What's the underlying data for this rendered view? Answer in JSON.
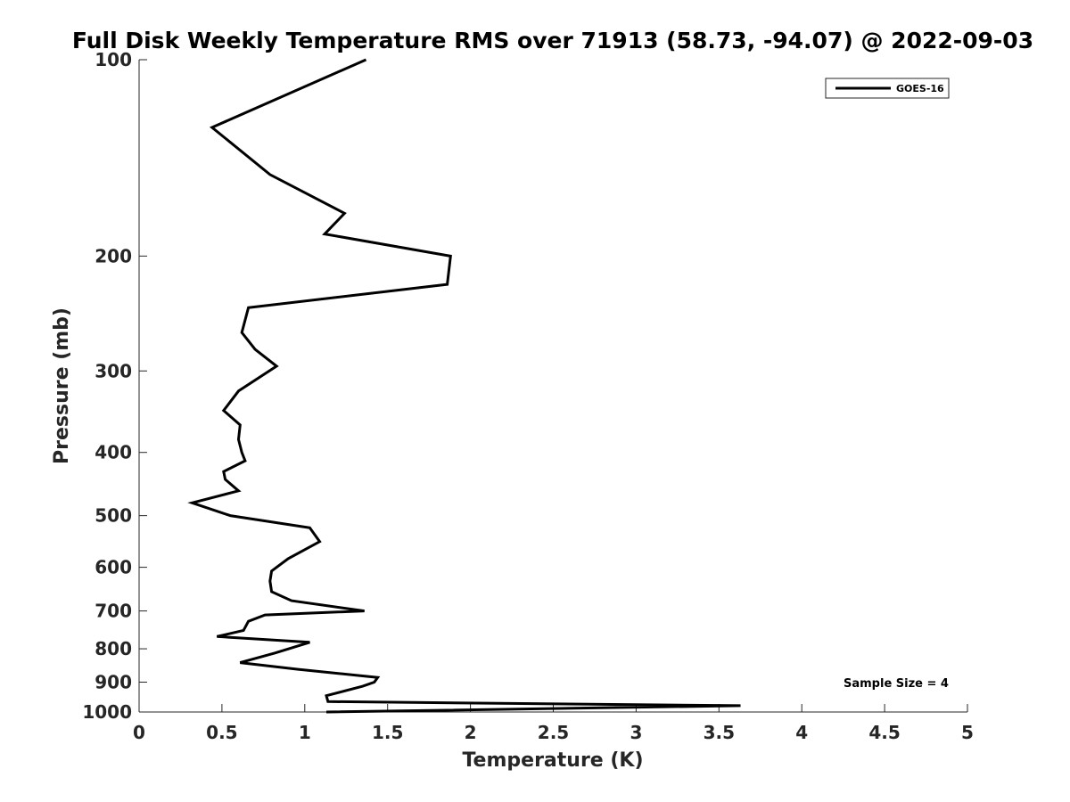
{
  "chart_data": {
    "type": "line",
    "title": "Full Disk Weekly Temperature RMS over 71913 (58.73, -94.07) @ 2022-09-03",
    "xlabel": "Temperature (K)",
    "ylabel": "Pressure (mb)",
    "xlim": [
      0,
      5
    ],
    "ylim": [
      100,
      1000
    ],
    "y_scale": "log",
    "y_reversed": true,
    "xticks": [
      0,
      0.5,
      1,
      1.5,
      2,
      2.5,
      3,
      3.5,
      4,
      4.5,
      5
    ],
    "xtick_labels": [
      "0",
      "0.5",
      "1",
      "1.5",
      "2",
      "2.5",
      "3",
      "3.5",
      "4",
      "4.5",
      "5"
    ],
    "yticks": [
      100,
      200,
      300,
      400,
      500,
      600,
      700,
      800,
      900,
      1000
    ],
    "ytick_labels": [
      "100",
      "200",
      "300",
      "400",
      "500",
      "600",
      "700",
      "800",
      "900",
      "1000"
    ],
    "grid": false,
    "legend_position": "top-right",
    "series": [
      {
        "name": "GOES-16",
        "color": "#000000",
        "x": [
          1.37,
          0.44,
          0.79,
          1.24,
          1.12,
          1.88,
          1.86,
          0.66,
          0.62,
          0.7,
          0.83,
          0.6,
          0.51,
          0.61,
          0.6,
          0.62,
          0.64,
          0.51,
          0.52,
          0.6,
          0.32,
          0.55,
          1.03,
          1.09,
          0.9,
          0.8,
          0.79,
          0.8,
          0.92,
          1.36,
          0.76,
          0.66,
          0.63,
          0.47,
          1.03,
          0.82,
          0.61,
          0.96,
          1.44,
          1.42,
          1.35,
          1.13,
          1.14,
          3.63,
          1.13
        ],
        "y": [
          100,
          127,
          150,
          172,
          185,
          200,
          221,
          240,
          262,
          278,
          295,
          322,
          345,
          363,
          382,
          400,
          412,
          428,
          440,
          458,
          478,
          500,
          522,
          548,
          582,
          608,
          630,
          654,
          675,
          700,
          710,
          726,
          750,
          766,
          782,
          812,
          840,
          860,
          885,
          900,
          913,
          944,
          964,
          978,
          1000
        ]
      }
    ],
    "annotations": [
      "Sample Size = 4"
    ]
  }
}
